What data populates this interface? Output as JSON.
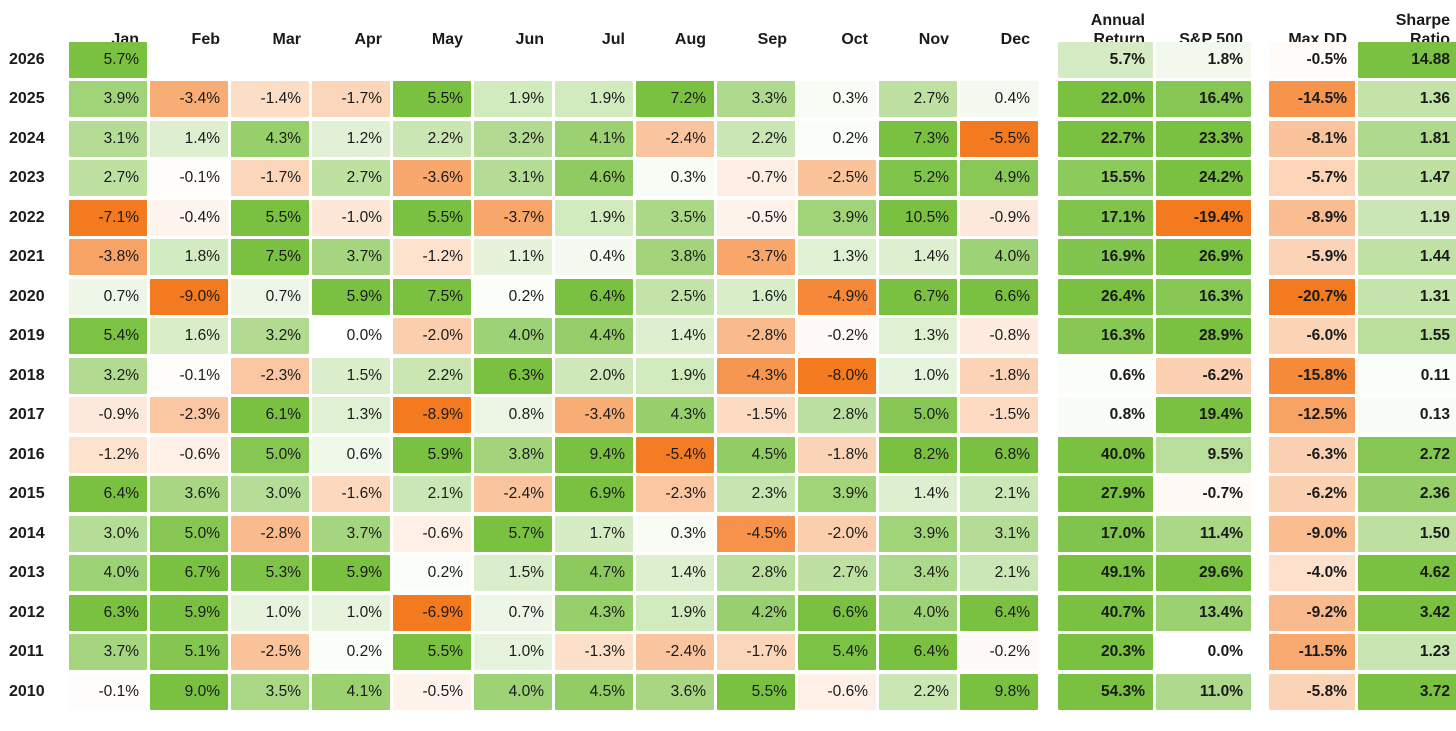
{
  "colors": {
    "positive": "#7AC142",
    "negative": "#F47A20",
    "text": "#1A1A1A",
    "background": "#FFFFFF"
  },
  "chart_data": {
    "type": "heatmap",
    "month_columns": [
      "Jan",
      "Feb",
      "Mar",
      "Apr",
      "May",
      "Jun",
      "Jul",
      "Aug",
      "Sep",
      "Oct",
      "Nov",
      "Dec"
    ],
    "summary_columns": [
      "Annual Return",
      "S&P 500",
      "Max DD",
      "Sharpe Ratio"
    ],
    "color_scale": {
      "monthly_abs_max": 5.5,
      "summary_abs_max": 18,
      "sharpe_abs_max": 3,
      "positive_color": "#7AC142",
      "negative_color": "#F47A20"
    },
    "rows": [
      {
        "year": "2026",
        "monthly": [
          "5.7%",
          "",
          "",
          "",
          "",
          "",
          "",
          "",
          "",
          "",
          "",
          ""
        ],
        "annual": "5.7%",
        "sp500": "1.8%",
        "max_dd": "-0.5%",
        "sharpe": "14.88"
      },
      {
        "year": "2025",
        "monthly": [
          "3.9%",
          "-3.4%",
          "-1.4%",
          "-1.7%",
          "5.5%",
          "1.9%",
          "1.9%",
          "7.2%",
          "3.3%",
          "0.3%",
          "2.7%",
          "0.4%"
        ],
        "annual": "22.0%",
        "sp500": "16.4%",
        "max_dd": "-14.5%",
        "sharpe": "1.36"
      },
      {
        "year": "2024",
        "monthly": [
          "3.1%",
          "1.4%",
          "4.3%",
          "1.2%",
          "2.2%",
          "3.2%",
          "4.1%",
          "-2.4%",
          "2.2%",
          "0.2%",
          "7.3%",
          "-5.5%"
        ],
        "annual": "22.7%",
        "sp500": "23.3%",
        "max_dd": "-8.1%",
        "sharpe": "1.81"
      },
      {
        "year": "2023",
        "monthly": [
          "2.7%",
          "-0.1%",
          "-1.7%",
          "2.7%",
          "-3.6%",
          "3.1%",
          "4.6%",
          "0.3%",
          "-0.7%",
          "-2.5%",
          "5.2%",
          "4.9%"
        ],
        "annual": "15.5%",
        "sp500": "24.2%",
        "max_dd": "-5.7%",
        "sharpe": "1.47"
      },
      {
        "year": "2022",
        "monthly": [
          "-7.1%",
          "-0.4%",
          "5.5%",
          "-1.0%",
          "5.5%",
          "-3.7%",
          "1.9%",
          "3.5%",
          "-0.5%",
          "3.9%",
          "10.5%",
          "-0.9%"
        ],
        "annual": "17.1%",
        "sp500": "-19.4%",
        "max_dd": "-8.9%",
        "sharpe": "1.19"
      },
      {
        "year": "2021",
        "monthly": [
          "-3.8%",
          "1.8%",
          "7.5%",
          "3.7%",
          "-1.2%",
          "1.1%",
          "0.4%",
          "3.8%",
          "-3.7%",
          "1.3%",
          "1.4%",
          "4.0%"
        ],
        "annual": "16.9%",
        "sp500": "26.9%",
        "max_dd": "-5.9%",
        "sharpe": "1.44"
      },
      {
        "year": "2020",
        "monthly": [
          "0.7%",
          "-9.0%",
          "0.7%",
          "5.9%",
          "7.5%",
          "0.2%",
          "6.4%",
          "2.5%",
          "1.6%",
          "-4.9%",
          "6.7%",
          "6.6%"
        ],
        "annual": "26.4%",
        "sp500": "16.3%",
        "max_dd": "-20.7%",
        "sharpe": "1.31"
      },
      {
        "year": "2019",
        "monthly": [
          "5.4%",
          "1.6%",
          "3.2%",
          "0.0%",
          "-2.0%",
          "4.0%",
          "4.4%",
          "1.4%",
          "-2.8%",
          "-0.2%",
          "1.3%",
          "-0.8%"
        ],
        "annual": "16.3%",
        "sp500": "28.9%",
        "max_dd": "-6.0%",
        "sharpe": "1.55"
      },
      {
        "year": "2018",
        "monthly": [
          "3.2%",
          "-0.1%",
          "-2.3%",
          "1.5%",
          "2.2%",
          "6.3%",
          "2.0%",
          "1.9%",
          "-4.3%",
          "-8.0%",
          "1.0%",
          "-1.8%"
        ],
        "annual": "0.6%",
        "sp500": "-6.2%",
        "max_dd": "-15.8%",
        "sharpe": "0.11"
      },
      {
        "year": "2017",
        "monthly": [
          "-0.9%",
          "-2.3%",
          "6.1%",
          "1.3%",
          "-8.9%",
          "0.8%",
          "-3.4%",
          "4.3%",
          "-1.5%",
          "2.8%",
          "5.0%",
          "-1.5%"
        ],
        "annual": "0.8%",
        "sp500": "19.4%",
        "max_dd": "-12.5%",
        "sharpe": "0.13"
      },
      {
        "year": "2016",
        "monthly": [
          "-1.2%",
          "-0.6%",
          "5.0%",
          "0.6%",
          "5.9%",
          "3.8%",
          "9.4%",
          "-5.4%",
          "4.5%",
          "-1.8%",
          "8.2%",
          "6.8%"
        ],
        "annual": "40.0%",
        "sp500": "9.5%",
        "max_dd": "-6.3%",
        "sharpe": "2.72"
      },
      {
        "year": "2015",
        "monthly": [
          "6.4%",
          "3.6%",
          "3.0%",
          "-1.6%",
          "2.1%",
          "-2.4%",
          "6.9%",
          "-2.3%",
          "2.3%",
          "3.9%",
          "1.4%",
          "2.1%"
        ],
        "annual": "27.9%",
        "sp500": "-0.7%",
        "max_dd": "-6.2%",
        "sharpe": "2.36"
      },
      {
        "year": "2014",
        "monthly": [
          "3.0%",
          "5.0%",
          "-2.8%",
          "3.7%",
          "-0.6%",
          "5.7%",
          "1.7%",
          "0.3%",
          "-4.5%",
          "-2.0%",
          "3.9%",
          "3.1%"
        ],
        "annual": "17.0%",
        "sp500": "11.4%",
        "max_dd": "-9.0%",
        "sharpe": "1.50"
      },
      {
        "year": "2013",
        "monthly": [
          "4.0%",
          "6.7%",
          "5.3%",
          "5.9%",
          "0.2%",
          "1.5%",
          "4.7%",
          "1.4%",
          "2.8%",
          "2.7%",
          "3.4%",
          "2.1%"
        ],
        "annual": "49.1%",
        "sp500": "29.6%",
        "max_dd": "-4.0%",
        "sharpe": "4.62"
      },
      {
        "year": "2012",
        "monthly": [
          "6.3%",
          "5.9%",
          "1.0%",
          "1.0%",
          "-6.9%",
          "0.7%",
          "4.3%",
          "1.9%",
          "4.2%",
          "6.6%",
          "4.0%",
          "6.4%"
        ],
        "annual": "40.7%",
        "sp500": "13.4%",
        "max_dd": "-9.2%",
        "sharpe": "3.42"
      },
      {
        "year": "2011",
        "monthly": [
          "3.7%",
          "5.1%",
          "-2.5%",
          "0.2%",
          "5.5%",
          "1.0%",
          "-1.3%",
          "-2.4%",
          "-1.7%",
          "5.4%",
          "6.4%",
          "-0.2%"
        ],
        "annual": "20.3%",
        "sp500": "0.0%",
        "max_dd": "-11.5%",
        "sharpe": "1.23"
      },
      {
        "year": "2010",
        "monthly": [
          "-0.1%",
          "9.0%",
          "3.5%",
          "4.1%",
          "-0.5%",
          "4.0%",
          "4.5%",
          "3.6%",
          "5.5%",
          "-0.6%",
          "2.2%",
          "9.8%"
        ],
        "annual": "54.3%",
        "sp500": "11.0%",
        "max_dd": "-5.8%",
        "sharpe": "3.72"
      }
    ]
  }
}
